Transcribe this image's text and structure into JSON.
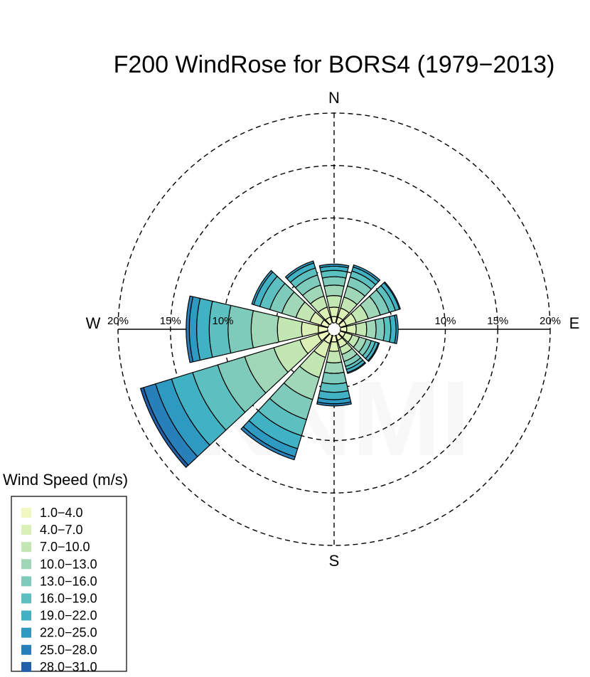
{
  "chart_data": {
    "type": "windrose",
    "title": "F200 WindRose for BORS4 (1979−2013)",
    "watermark": "KNMI",
    "compass_labels": {
      "N": "N",
      "E": "E",
      "S": "S",
      "W": "W"
    },
    "rings": [
      {
        "value": 5
      },
      {
        "value": 10,
        "label": "10%"
      },
      {
        "value": 15,
        "label": "15%"
      },
      {
        "value": 20,
        "label": "20%"
      }
    ],
    "ring_label_axis": "W-E",
    "grid": "dashed",
    "sector_width_deg": 30,
    "legend": {
      "title": "Wind Speed (m/s)",
      "placement": "bottom-left",
      "bins": [
        {
          "label": "1.0−4.0",
          "color": "#f0f8c0"
        },
        {
          "label": "4.0−7.0",
          "color": "#dbf0b4"
        },
        {
          "label": "7.0−10.0",
          "color": "#c3e7b2"
        },
        {
          "label": "10.0−13.0",
          "color": "#9fd7b8"
        },
        {
          "label": "13.0−16.0",
          "color": "#7ecbbb"
        },
        {
          "label": "16.0−19.0",
          "color": "#5cbfc0"
        },
        {
          "label": "19.0−22.0",
          "color": "#40b2c4"
        },
        {
          "label": "22.0−25.0",
          "color": "#2f9ac1"
        },
        {
          "label": "25.0−28.0",
          "color": "#2780ba"
        },
        {
          "label": "28.0−31.0",
          "color": "#2060a8"
        }
      ]
    },
    "sectors": [
      {
        "direction": 0,
        "cumulative": [
          0.6,
          1.5,
          2.6,
          3.6,
          4.4,
          5.0,
          5.4,
          5.6
        ]
      },
      {
        "direction": 30,
        "cumulative": [
          0.6,
          1.5,
          2.6,
          3.7,
          4.6,
          5.2,
          5.6,
          5.8
        ]
      },
      {
        "direction": 60,
        "cumulative": [
          0.6,
          1.6,
          2.8,
          4.0,
          4.9,
          5.5,
          5.9,
          6.0
        ]
      },
      {
        "direction": 90,
        "cumulative": [
          0.6,
          1.5,
          2.5,
          3.4,
          4.2,
          4.8,
          5.3,
          5.5
        ]
      },
      {
        "direction": 120,
        "cumulative": [
          0.5,
          1.2,
          1.9,
          2.6,
          3.1,
          3.5,
          3.8,
          3.9
        ]
      },
      {
        "direction": 150,
        "cumulative": [
          0.5,
          1.2,
          1.9,
          2.6,
          3.1,
          3.4,
          3.7,
          3.8
        ]
      },
      {
        "direction": 180,
        "cumulative": [
          0.6,
          1.5,
          2.6,
          3.6,
          4.6,
          5.4,
          6.1,
          6.5,
          6.7
        ]
      },
      {
        "direction": 210,
        "cumulative": [
          0.8,
          2.2,
          4.2,
          6.4,
          8.4,
          10.0,
          11.3,
          12.1,
          12.4
        ]
      },
      {
        "direction": 240,
        "cumulative": [
          1.0,
          2.8,
          5.4,
          8.3,
          11.0,
          13.5,
          15.6,
          17.2,
          18.4,
          18.7
        ]
      },
      {
        "direction": 270,
        "cumulative": [
          0.9,
          2.5,
          4.8,
          7.3,
          9.5,
          11.3,
          12.5,
          13.2,
          13.5
        ]
      },
      {
        "direction": 300,
        "cumulative": [
          0.7,
          1.8,
          3.2,
          4.6,
          5.8,
          6.8,
          7.4,
          7.6
        ]
      },
      {
        "direction": 330,
        "cumulative": [
          0.6,
          1.6,
          2.7,
          3.8,
          4.8,
          5.5,
          6.0,
          6.2
        ]
      }
    ]
  }
}
